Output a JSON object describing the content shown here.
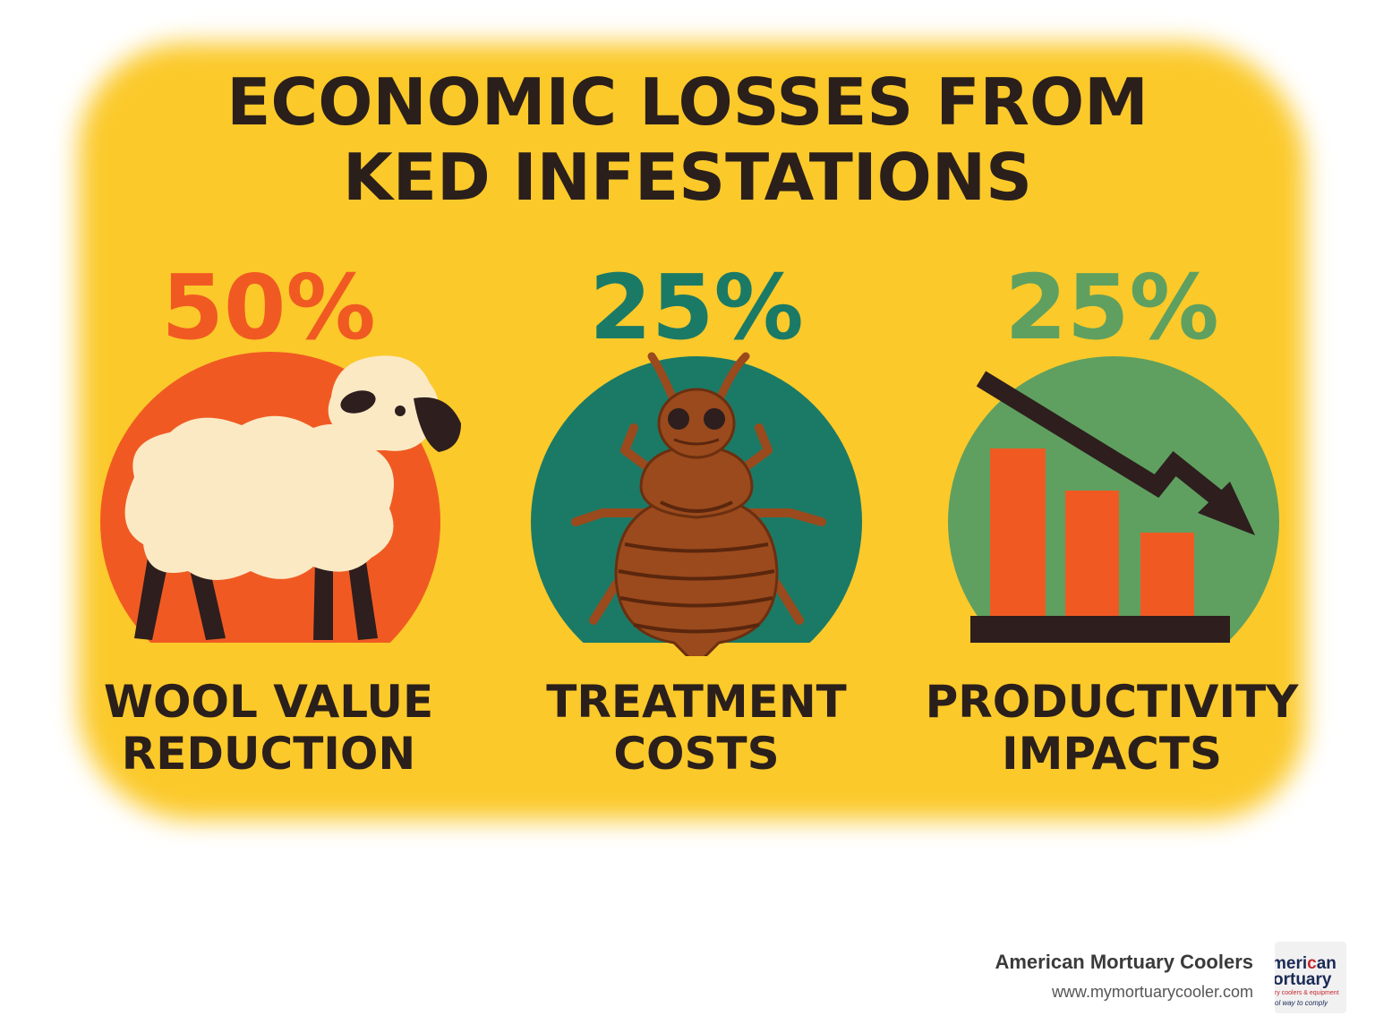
{
  "title": {
    "line1": "ECONOMIC LOSSES FROM",
    "line2": "KED INFESTATIONS"
  },
  "stats": [
    {
      "value": "50%",
      "label_line1": "WOOL VALUE",
      "label_line2": "REDUCTION",
      "color": "#f05a22",
      "icon": "sheep-icon"
    },
    {
      "value": "25%",
      "label_line1": "TREATMENT",
      "label_line2": "COSTS",
      "color": "#1b7a66",
      "icon": "ked-bug-icon"
    },
    {
      "value": "25%",
      "label_line1": "PRODUCTIVITY",
      "label_line2": "IMPACTS",
      "color": "#5fa060",
      "icon": "declining-bar-chart-icon"
    }
  ],
  "colors": {
    "background": "#fbc92a",
    "dark": "#2a1f1b",
    "orange": "#f05a22",
    "teal": "#1b7a66",
    "green": "#5fa060",
    "bug_brown": "#9a4a1c"
  },
  "footer": {
    "brand": "American Mortuary Coolers",
    "url": "www.mymortuarycooler.com"
  },
  "logo": {
    "line1a": "meri",
    "line1b": "c",
    "line1c": "an",
    "line2": "ortuary",
    "line3": "ry coolers & equipment",
    "line4": "ol way to comply"
  }
}
